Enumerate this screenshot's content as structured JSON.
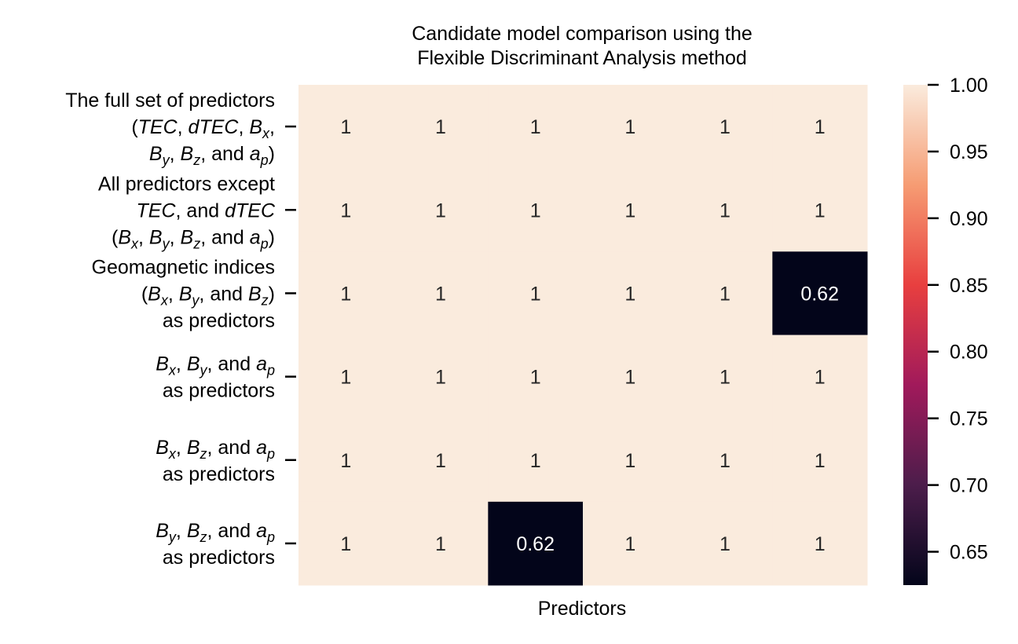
{
  "chart_data": {
    "type": "heatmap",
    "title": [
      "Candidate model comparison using the",
      "Flexible Discriminant Analysis method"
    ],
    "xlabel": "Predictors",
    "ylabel": "",
    "row_labels": [
      {
        "lines": [
          [
            {
              "t": "The full set of predictors"
            }
          ],
          [
            {
              "t": "("
            },
            {
              "t": "TEC",
              "i": true
            },
            {
              "t": ", "
            },
            {
              "t": "dTEC",
              "i": true
            },
            {
              "t": ", "
            },
            {
              "t": "B",
              "i": true
            },
            {
              "t": "x",
              "i": true,
              "sub": true
            },
            {
              "t": ","
            }
          ],
          [
            {
              "t": "B",
              "i": true
            },
            {
              "t": "y",
              "i": true,
              "sub": true
            },
            {
              "t": ", "
            },
            {
              "t": "B",
              "i": true
            },
            {
              "t": "z",
              "i": true,
              "sub": true
            },
            {
              "t": ", and "
            },
            {
              "t": "a",
              "i": true
            },
            {
              "t": "p",
              "i": true,
              "sub": true
            },
            {
              "t": ")"
            }
          ]
        ]
      },
      {
        "lines": [
          [
            {
              "t": "All predictors except"
            }
          ],
          [
            {
              "t": "TEC",
              "i": true
            },
            {
              "t": ", and "
            },
            {
              "t": "dTEC",
              "i": true
            }
          ],
          [
            {
              "t": "("
            },
            {
              "t": "B",
              "i": true
            },
            {
              "t": "x",
              "i": true,
              "sub": true
            },
            {
              "t": ", "
            },
            {
              "t": "B",
              "i": true
            },
            {
              "t": "y",
              "i": true,
              "sub": true
            },
            {
              "t": ", "
            },
            {
              "t": "B",
              "i": true
            },
            {
              "t": "z",
              "i": true,
              "sub": true
            },
            {
              "t": ", and "
            },
            {
              "t": "a",
              "i": true
            },
            {
              "t": "p",
              "i": true,
              "sub": true
            },
            {
              "t": ")"
            }
          ]
        ]
      },
      {
        "lines": [
          [
            {
              "t": "Geomagnetic indices"
            }
          ],
          [
            {
              "t": "("
            },
            {
              "t": "B",
              "i": true
            },
            {
              "t": "x",
              "i": true,
              "sub": true
            },
            {
              "t": ", "
            },
            {
              "t": "B",
              "i": true
            },
            {
              "t": "y",
              "i": true,
              "sub": true
            },
            {
              "t": ", and "
            },
            {
              "t": "B",
              "i": true
            },
            {
              "t": "z",
              "i": true,
              "sub": true
            },
            {
              "t": ")"
            }
          ],
          [
            {
              "t": "as predictors"
            }
          ]
        ]
      },
      {
        "lines": [
          [
            {
              "t": "B",
              "i": true
            },
            {
              "t": "x",
              "i": true,
              "sub": true
            },
            {
              "t": ", "
            },
            {
              "t": "B",
              "i": true
            },
            {
              "t": "y",
              "i": true,
              "sub": true
            },
            {
              "t": ", and "
            },
            {
              "t": "a",
              "i": true
            },
            {
              "t": "p",
              "i": true,
              "sub": true
            }
          ],
          [
            {
              "t": "as predictors"
            }
          ]
        ]
      },
      {
        "lines": [
          [
            {
              "t": "B",
              "i": true
            },
            {
              "t": "x",
              "i": true,
              "sub": true
            },
            {
              "t": ", "
            },
            {
              "t": "B",
              "i": true
            },
            {
              "t": "z",
              "i": true,
              "sub": true
            },
            {
              "t": ", and "
            },
            {
              "t": "a",
              "i": true
            },
            {
              "t": "p",
              "i": true,
              "sub": true
            }
          ],
          [
            {
              "t": "as predictors"
            }
          ]
        ]
      },
      {
        "lines": [
          [
            {
              "t": "B",
              "i": true
            },
            {
              "t": "y",
              "i": true,
              "sub": true
            },
            {
              "t": ", "
            },
            {
              "t": "B",
              "i": true
            },
            {
              "t": "z",
              "i": true,
              "sub": true
            },
            {
              "t": ", and "
            },
            {
              "t": "a",
              "i": true
            },
            {
              "t": "p",
              "i": true,
              "sub": true
            }
          ],
          [
            {
              "t": "as predictors"
            }
          ]
        ]
      }
    ],
    "values": [
      [
        1,
        1,
        1,
        1,
        1,
        1
      ],
      [
        1,
        1,
        1,
        1,
        1,
        1
      ],
      [
        1,
        1,
        1,
        1,
        1,
        0.62
      ],
      [
        1,
        1,
        1,
        1,
        1,
        1
      ],
      [
        1,
        1,
        1,
        1,
        1,
        1
      ],
      [
        1,
        1,
        0.62,
        1,
        1,
        1
      ]
    ],
    "value_labels": [
      [
        "1",
        "1",
        "1",
        "1",
        "1",
        "1"
      ],
      [
        "1",
        "1",
        "1",
        "1",
        "1",
        "1"
      ],
      [
        "1",
        "1",
        "1",
        "1",
        "1",
        "0.62"
      ],
      [
        "1",
        "1",
        "1",
        "1",
        "1",
        "1"
      ],
      [
        "1",
        "1",
        "1",
        "1",
        "1",
        "1"
      ],
      [
        "1",
        "1",
        "0.62",
        "1",
        "1",
        "1"
      ]
    ],
    "colorbar": {
      "range": [
        0.625,
        1.0
      ],
      "ticks": [
        1.0,
        0.95,
        0.9,
        0.85,
        0.8,
        0.75,
        0.7,
        0.65
      ],
      "tick_labels": [
        "1.00",
        "0.95",
        "0.90",
        "0.85",
        "0.80",
        "0.75",
        "0.70",
        "0.65"
      ],
      "colormap": "rocket",
      "stops": [
        "#03051a",
        "#4c1d4b",
        "#a11a5b",
        "#e83f3f",
        "#f69c73",
        "#faebdd"
      ]
    },
    "grid": false,
    "legend": "colorbar-right"
  }
}
